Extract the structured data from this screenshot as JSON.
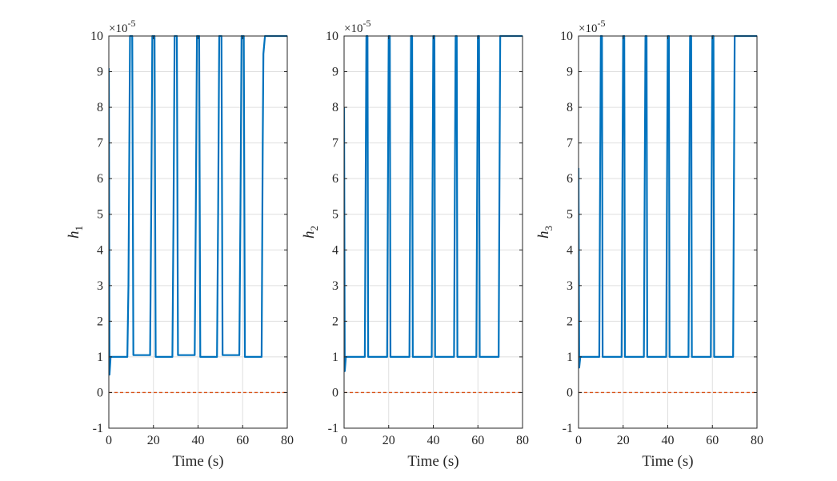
{
  "chart_data": [
    {
      "type": "line",
      "xlabel": "Time (s)",
      "ylabel_base": "h",
      "ylabel_sub": "1",
      "exponent_base": "×10",
      "exponent_power": "-5",
      "xlim": [
        0,
        80
      ],
      "ylim": [
        -1,
        10
      ],
      "xticks": [
        "0",
        "20",
        "40",
        "60",
        "80"
      ],
      "yticks": [
        "-1",
        "0",
        "1",
        "2",
        "3",
        "4",
        "5",
        "6",
        "7",
        "8",
        "9",
        "10"
      ],
      "grid": true,
      "series": [
        {
          "color": "#0072BD",
          "x": [
            0,
            0.3,
            0.8,
            8.3,
            8.8,
            9.5,
            10.5,
            11.0,
            18.5,
            19.0,
            19.5,
            20.5,
            21.0,
            28.5,
            29.0,
            29.5,
            30.5,
            31.0,
            38.5,
            39.0,
            39.5,
            40.5,
            41.0,
            48.5,
            49.0,
            49.5,
            50.5,
            51.0,
            58.5,
            59.0,
            59.5,
            60.5,
            61.0,
            68.5,
            69.0,
            69.3,
            70.0,
            80
          ],
          "y": [
            9.1,
            0.5,
            1.0,
            1.0,
            3.0,
            10.0,
            10.0,
            1.05,
            1.05,
            5.0,
            10.0,
            10.0,
            1.0,
            1.0,
            5.0,
            10.0,
            10.0,
            1.05,
            1.05,
            5.0,
            10.0,
            10.0,
            1.0,
            1.0,
            5.0,
            10.0,
            10.0,
            1.05,
            1.05,
            5.0,
            10.0,
            10.0,
            1.0,
            1.0,
            7.0,
            9.5,
            10.0,
            10.0
          ]
        },
        {
          "color": "#D95319",
          "style": "dashed",
          "x": [
            0,
            80
          ],
          "y": [
            0,
            0
          ]
        }
      ]
    },
    {
      "type": "line",
      "xlabel": "Time (s)",
      "ylabel_base": "h",
      "ylabel_sub": "2",
      "exponent_base": "×10",
      "exponent_power": "-5",
      "xlim": [
        0,
        80
      ],
      "ylim": [
        -1,
        10
      ],
      "xticks": [
        "0",
        "20",
        "40",
        "60",
        "80"
      ],
      "yticks": [
        "-1",
        "0",
        "1",
        "2",
        "3",
        "4",
        "5",
        "6",
        "7",
        "8",
        "9",
        "10"
      ],
      "grid": true,
      "series": [
        {
          "color": "#0072BD",
          "x": [
            0,
            0.3,
            0.8,
            9.3,
            9.6,
            10.0,
            10.5,
            10.8,
            19.3,
            19.6,
            20.0,
            20.5,
            20.8,
            29.3,
            29.6,
            30.0,
            30.5,
            30.8,
            39.3,
            39.6,
            40.0,
            40.5,
            40.8,
            49.3,
            49.6,
            50.0,
            50.5,
            50.8,
            59.3,
            59.6,
            60.0,
            60.5,
            60.8,
            69.3,
            69.6,
            70.0,
            80
          ],
          "y": [
            8.0,
            0.6,
            1.0,
            1.0,
            5.0,
            10.0,
            10.0,
            1.0,
            1.0,
            5.0,
            10.0,
            10.0,
            1.0,
            1.0,
            5.0,
            10.0,
            10.0,
            1.0,
            1.0,
            5.0,
            10.0,
            10.0,
            1.0,
            1.0,
            5.0,
            10.0,
            10.0,
            1.0,
            1.0,
            5.0,
            10.0,
            10.0,
            1.0,
            1.0,
            5.0,
            10.0,
            10.0
          ]
        },
        {
          "color": "#D95319",
          "style": "dashed",
          "x": [
            0,
            80
          ],
          "y": [
            0,
            0
          ]
        }
      ]
    },
    {
      "type": "line",
      "xlabel": "Time (s)",
      "ylabel_base": "h",
      "ylabel_sub": "3",
      "exponent_base": "×10",
      "exponent_power": "-5",
      "xlim": [
        0,
        80
      ],
      "ylim": [
        -1,
        10
      ],
      "xticks": [
        "0",
        "20",
        "40",
        "60",
        "80"
      ],
      "yticks": [
        "-1",
        "0",
        "1",
        "2",
        "3",
        "4",
        "5",
        "6",
        "7",
        "8",
        "9",
        "10"
      ],
      "grid": true,
      "series": [
        {
          "color": "#0072BD",
          "x": [
            0,
            0.3,
            0.8,
            9.3,
            9.6,
            10.0,
            10.5,
            10.8,
            19.3,
            19.6,
            20.0,
            20.5,
            20.8,
            29.3,
            29.6,
            30.0,
            30.5,
            30.8,
            39.3,
            39.6,
            40.0,
            40.5,
            40.8,
            49.3,
            49.6,
            50.0,
            50.5,
            50.8,
            59.3,
            59.6,
            60.0,
            60.5,
            60.8,
            69.3,
            69.6,
            70.0,
            80
          ],
          "y": [
            6.3,
            0.7,
            1.0,
            1.0,
            5.0,
            10.0,
            10.0,
            1.0,
            1.0,
            5.0,
            10.0,
            10.0,
            1.0,
            1.0,
            5.0,
            10.0,
            10.0,
            1.0,
            1.0,
            5.0,
            10.0,
            10.0,
            1.0,
            1.0,
            5.0,
            10.0,
            10.0,
            1.0,
            1.0,
            5.0,
            10.0,
            10.0,
            1.0,
            1.0,
            5.0,
            10.0,
            10.0
          ]
        },
        {
          "color": "#D95319",
          "style": "dashed",
          "x": [
            0,
            80
          ],
          "y": [
            0,
            0
          ]
        }
      ]
    }
  ]
}
